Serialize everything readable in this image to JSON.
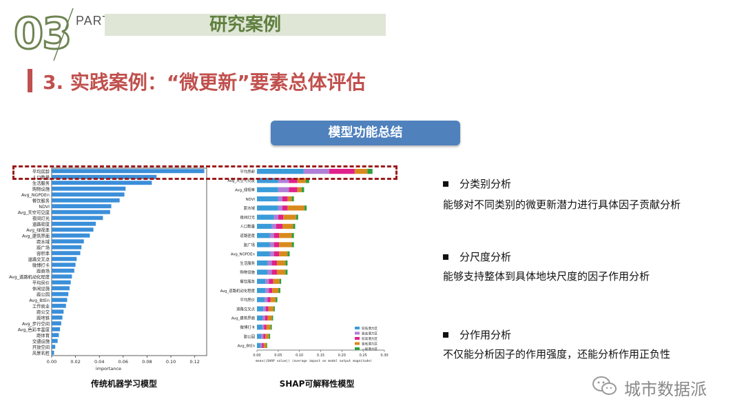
{
  "header": {
    "part_number": "03",
    "part_label": "PART",
    "title": "研究案例",
    "section_title": "3. 实践案例：“微更新”要素总体评估",
    "pill": "模型功能总结"
  },
  "left_chart": {
    "caption": "传统机器学习模型",
    "xlabel": "importance",
    "ticks": [
      "0.00",
      "0.02",
      "0.04",
      "0.06",
      "0.08",
      "0.10",
      "0.12"
    ]
  },
  "right_chart": {
    "caption": "SHAP可解释性模型",
    "xlabel": "mean(|SHAP value|) (average impact on model output magnitude)",
    "ticks": [
      "0.00",
      "0.05",
      "0.10",
      "0.15",
      "0.20",
      "0.25",
      "0.30"
    ]
  },
  "chart_data": [
    {
      "type": "bar",
      "xlabel": "importance",
      "xlim": [
        0,
        0.13
      ],
      "categories": [
        "平均房龄",
        "人口数量",
        "生活服务",
        "购物设施",
        "Avg_NGPDEn",
        "餐饮服务",
        "NDVI",
        "Avg_天空可见度",
        "夜间灯光",
        "道路密度",
        "Avg_绿视率",
        "Avg_建筑界面",
        "距水域",
        "距广场",
        "容积率",
        "道路交叉点",
        "微博打卡",
        "距商场",
        "Avg_道路机动化程度",
        "平均房价",
        "休闲设施",
        "距公园",
        "Avg_BtEn",
        "工作就业",
        "距公交",
        "距地铁",
        "Avg_步行空间",
        "Avg_色彩丰富度",
        "距体育",
        "交通设施",
        "开放空间",
        "风景名胜"
      ],
      "values": [
        0.128,
        0.088,
        0.084,
        0.062,
        0.061,
        0.057,
        0.05,
        0.049,
        0.043,
        0.037,
        0.035,
        0.032,
        0.027,
        0.025,
        0.024,
        0.021,
        0.02,
        0.019,
        0.017,
        0.016,
        0.015,
        0.014,
        0.013,
        0.012,
        0.01,
        0.009,
        0.008,
        0.007,
        0.006,
        0.005,
        0.003,
        0.002
      ]
    },
    {
      "type": "bar",
      "orientation": "horizontal-stacked",
      "xlabel": "mean(|SHAP value|) (average impact on model output magnitude)",
      "xlim": [
        0,
        0.3
      ],
      "categories": [
        "平均房龄",
        "Avg_天空可见度",
        "Avg_绿视率",
        "NDVI",
        "距水域",
        "夜间灯光",
        "人口数量",
        "道路密度",
        "距广场",
        "Avg_NGPDEn",
        "生活服务",
        "购物设施",
        "餐饮服务",
        "Avg_道路机动化程度",
        "平均房价",
        "道路交叉点",
        "Avg_建筑界面",
        "微博打卡",
        "距公园",
        "Avg_BtEn"
      ],
      "series": [
        {
          "name": "较低潜力区",
          "color": "#3a9bd9",
          "values": [
            0.11,
            0.05,
            0.05,
            0.05,
            0.05,
            0.04,
            0.035,
            0.03,
            0.03,
            0.03,
            0.025,
            0.025,
            0.02,
            0.02,
            0.018,
            0.015,
            0.013,
            0.012,
            0.01,
            0.008
          ]
        },
        {
          "name": "极高潜力区",
          "color": "#b07fd6",
          "values": [
            0.06,
            0.025,
            0.025,
            0.01,
            0.01,
            0.01,
            0.01,
            0.01,
            0.01,
            0.01,
            0.01,
            0.01,
            0.008,
            0.008,
            0.007,
            0.006,
            0.006,
            0.005,
            0.005,
            0.004
          ]
        },
        {
          "name": "较高潜力区",
          "color": "#e0218a",
          "values": [
            0.06,
            0.02,
            0.02,
            0.012,
            0.012,
            0.012,
            0.015,
            0.012,
            0.012,
            0.012,
            0.012,
            0.012,
            0.01,
            0.008,
            0.007,
            0.006,
            0.006,
            0.005,
            0.005,
            0.004
          ]
        },
        {
          "name": "极低潜力区",
          "color": "#d98a1e",
          "values": [
            0.03,
            0.02,
            0.01,
            0.01,
            0.04,
            0.03,
            0.025,
            0.03,
            0.03,
            0.02,
            0.02,
            0.02,
            0.015,
            0.015,
            0.012,
            0.012,
            0.01,
            0.01,
            0.008,
            0.006
          ]
        },
        {
          "name": "一般潜力区",
          "color": "#2e9e3e",
          "values": [
            0.012,
            0.008,
            0.006,
            0.005,
            0.005,
            0.005,
            0.005,
            0.005,
            0.005,
            0.005,
            0.005,
            0.005,
            0.004,
            0.004,
            0.004,
            0.003,
            0.003,
            0.003,
            0.003,
            0.002
          ]
        }
      ]
    }
  ],
  "bullets": [
    {
      "title": "分类别分析",
      "desc": "能够对不同类别的微更新潜力进行具体因子贡献分析"
    },
    {
      "title": "分尺度分析",
      "desc": "能够支持整体到具体地块尺度的因子作用分析"
    },
    {
      "title": "分作用分析",
      "desc": "不仅能分析因子的作用强度，还能分析作用正负性"
    }
  ],
  "watermark": "城市数据派",
  "colors": {
    "accent_red": "#c0504d",
    "accent_green": "#5f7f3e",
    "pill_blue": "#4f81bd"
  }
}
